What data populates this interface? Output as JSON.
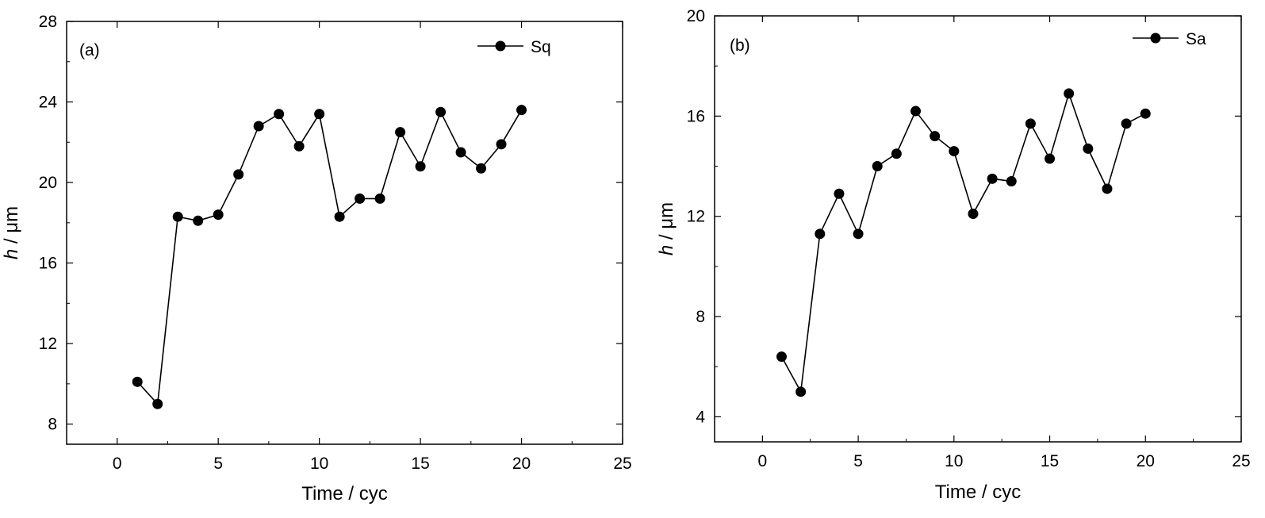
{
  "chart_data": [
    {
      "type": "line",
      "panel_label": "(a)",
      "xlabel": "Time / cyc",
      "ylabel_italic": "h",
      "ylabel_unit": " / μm",
      "xlim": [
        -2.5,
        25
      ],
      "ylim": [
        7,
        28
      ],
      "xticks": [
        0,
        5,
        10,
        15,
        20,
        25
      ],
      "yticks": [
        8,
        12,
        16,
        20,
        24,
        28
      ],
      "grid": false,
      "legend_position": "top-right",
      "marker": "filled-circle",
      "color": "#000000",
      "series": [
        {
          "name": "Sq",
          "x": [
            1,
            2,
            3,
            4,
            5,
            6,
            7,
            8,
            9,
            10,
            11,
            12,
            13,
            14,
            15,
            16,
            17,
            18,
            19,
            20
          ],
          "y": [
            10.1,
            9.0,
            18.3,
            18.1,
            18.4,
            20.4,
            22.8,
            23.4,
            21.8,
            23.4,
            18.3,
            19.2,
            19.2,
            22.5,
            20.8,
            23.5,
            21.5,
            20.7,
            21.9,
            23.6
          ]
        }
      ]
    },
    {
      "type": "line",
      "panel_label": "(b)",
      "xlabel": "Time / cyc",
      "ylabel_italic": "h",
      "ylabel_unit": " / μm",
      "xlim": [
        -2.5,
        25
      ],
      "ylim": [
        3,
        20
      ],
      "xticks": [
        0,
        5,
        10,
        15,
        20,
        25
      ],
      "yticks": [
        4,
        8,
        12,
        16,
        20
      ],
      "grid": false,
      "legend_position": "top-right",
      "marker": "filled-circle",
      "color": "#000000",
      "series": [
        {
          "name": "Sa",
          "x": [
            1,
            2,
            3,
            4,
            5,
            6,
            7,
            8,
            9,
            10,
            11,
            12,
            13,
            14,
            15,
            16,
            17,
            18,
            19,
            20
          ],
          "y": [
            6.4,
            5.0,
            11.3,
            12.9,
            11.3,
            14.0,
            14.5,
            16.2,
            15.2,
            14.6,
            12.1,
            13.5,
            13.4,
            15.7,
            14.3,
            16.9,
            14.7,
            13.1,
            15.7,
            16.1
          ]
        }
      ]
    }
  ]
}
